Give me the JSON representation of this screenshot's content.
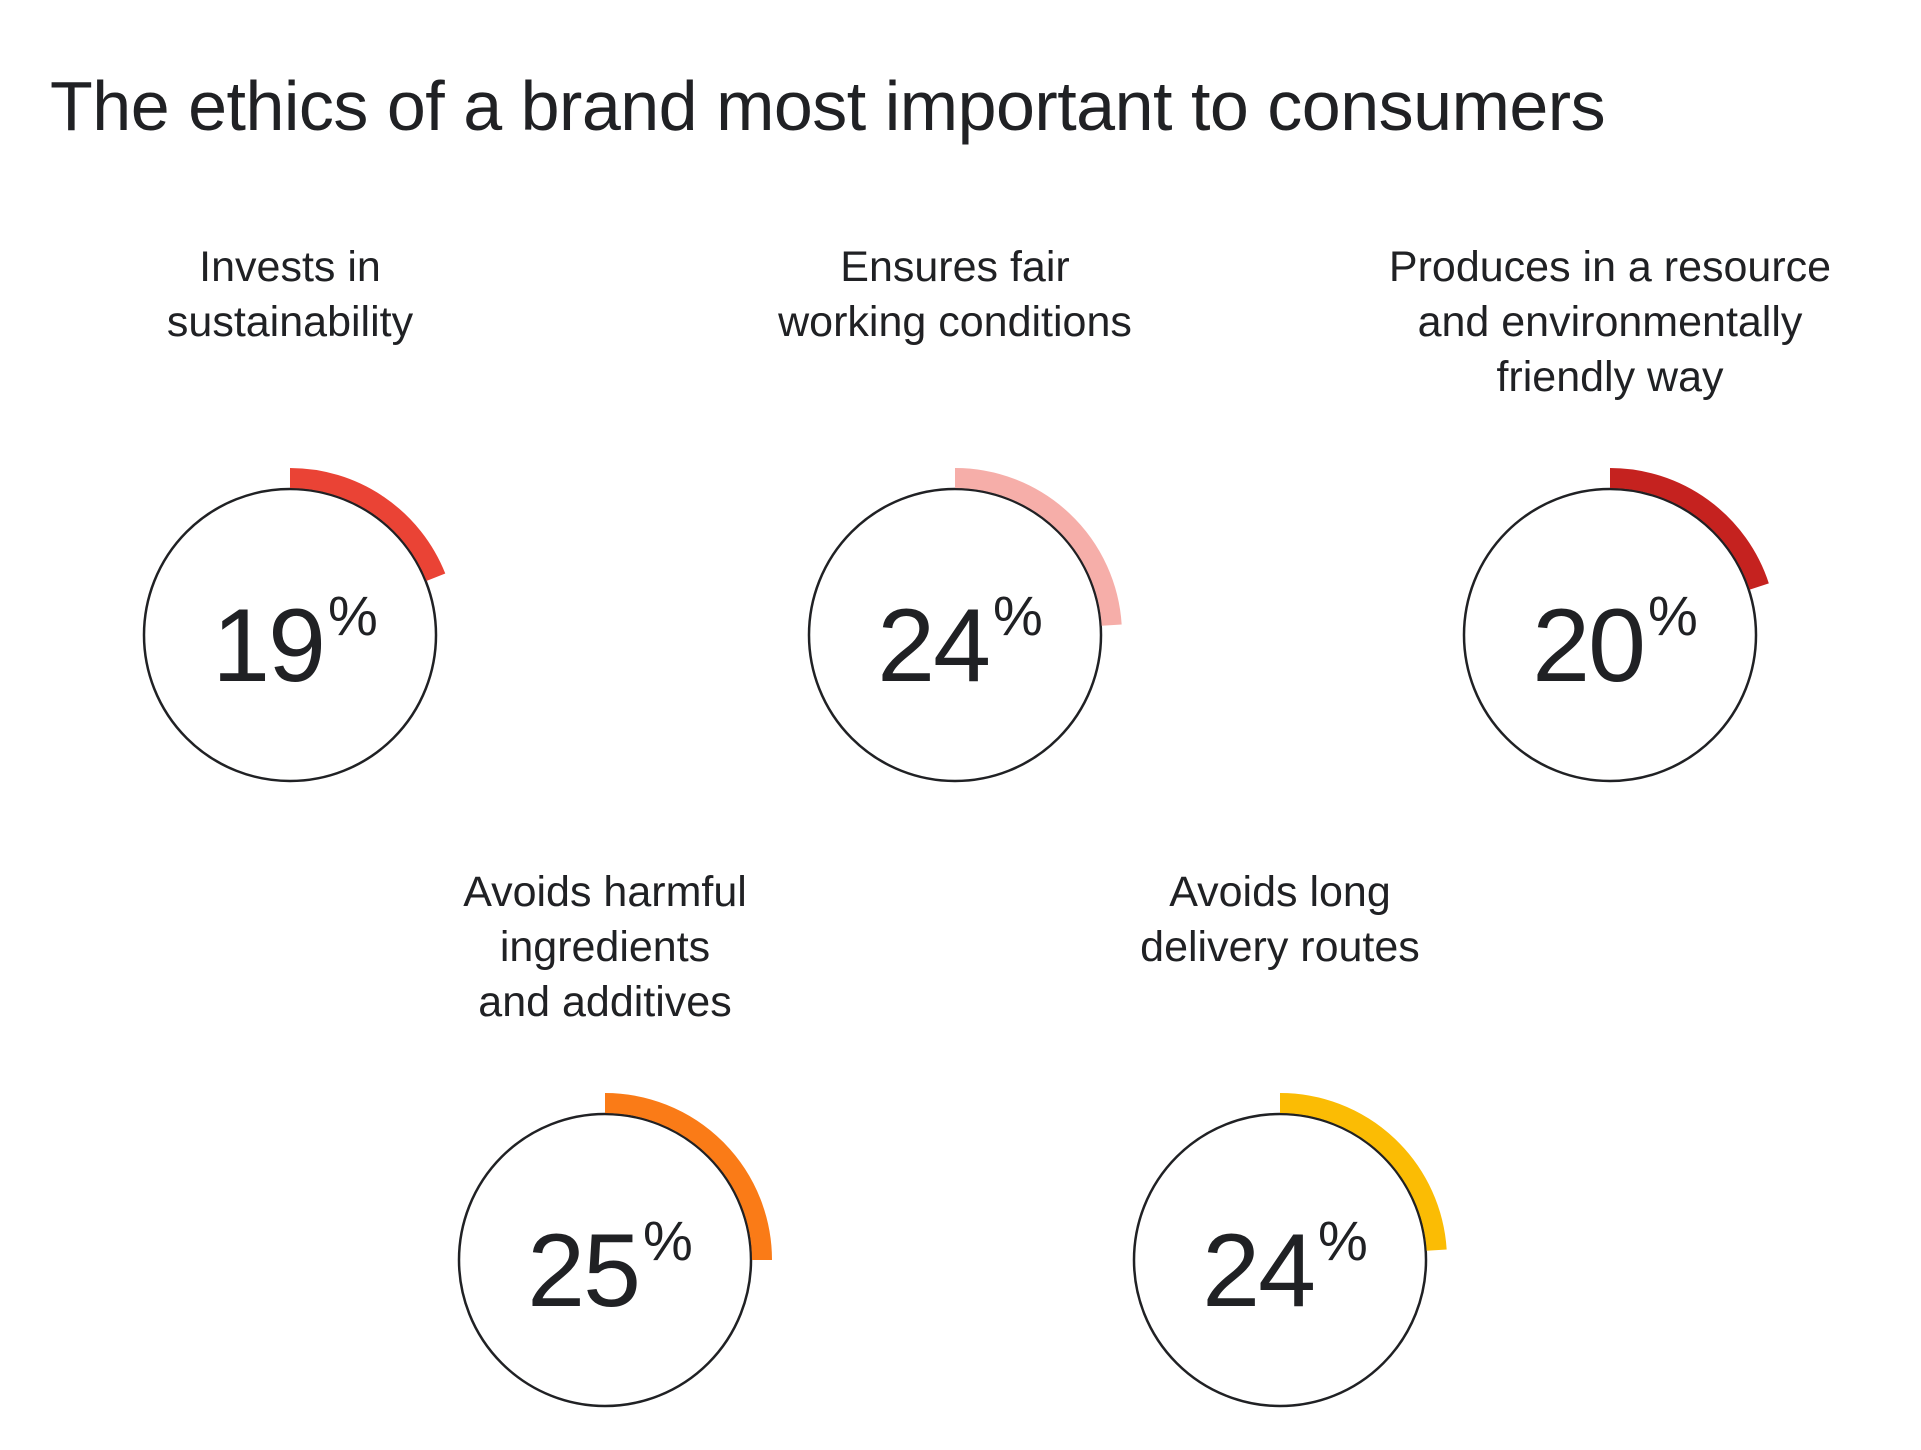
{
  "title": "The ethics of a brand most important to consumers",
  "chart_data": {
    "type": "radial-gauge",
    "unit": "%",
    "items": [
      {
        "label": "Invests in\nsustainability",
        "value": 19,
        "color": "#EA4335"
      },
      {
        "label": "Ensures fair\nworking conditions",
        "value": 24,
        "color": "#F6AEA9"
      },
      {
        "label": "Produces in a resource\nand environmentally\nfriendly way",
        "value": 20,
        "color": "#C5221F"
      },
      {
        "label": "Avoids harmful\ningredients\nand additives",
        "value": 25,
        "color": "#FA7B17"
      },
      {
        "label": "Avoids long\ndelivery routes",
        "value": 24,
        "color": "#FBBC04"
      }
    ]
  },
  "display": {
    "items": [
      {
        "value_text": "19",
        "sign": "%"
      },
      {
        "value_text": "24",
        "sign": "%"
      },
      {
        "value_text": "20",
        "sign": "%"
      },
      {
        "value_text": "25",
        "sign": "%"
      },
      {
        "value_text": "24",
        "sign": "%"
      }
    ]
  }
}
